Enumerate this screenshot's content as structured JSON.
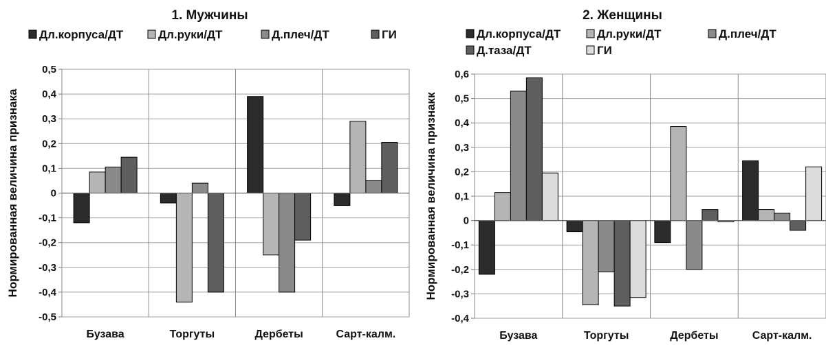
{
  "chart_data": [
    {
      "type": "bar",
      "title": "1. Мужчины",
      "ylabel": "Нормированная величина признака",
      "xlabel": "",
      "ylim": [
        -0.5,
        0.5
      ],
      "yticks": [
        "0,5",
        "0,4",
        "0,3",
        "0,2",
        "0,1",
        "0",
        "-0,1",
        "-0,2",
        "-0,3",
        "-0,4",
        "-0,5"
      ],
      "grid": "x-categories",
      "legend_position": "top",
      "categories": [
        "Бузава",
        "Торгуты",
        "Дербеты",
        "Сарт-калм."
      ],
      "series": [
        {
          "name": "Дл.корпуса/ДТ",
          "color": "#2b2b2b",
          "values": [
            -0.12,
            -0.04,
            0.39,
            -0.05
          ]
        },
        {
          "name": "Дл.руки/ДТ",
          "color": "#b5b5b5",
          "values": [
            0.085,
            -0.44,
            -0.25,
            0.29
          ]
        },
        {
          "name": "Д.плеч/ДТ",
          "color": "#8a8a8a",
          "values": [
            0.105,
            0.04,
            -0.4,
            0.05
          ]
        },
        {
          "name": "ГИ",
          "color": "#5e5e5e",
          "values": [
            0.145,
            -0.4,
            -0.19,
            0.205
          ]
        }
      ]
    },
    {
      "type": "bar",
      "title": "2. Женщины",
      "ylabel": "Нормированная величина признакк",
      "xlabel": "",
      "ylim": [
        -0.4,
        0.6
      ],
      "yticks": [
        "0,6",
        "0,5",
        "0,4",
        "0,3",
        "0,2",
        "0,1",
        "0",
        "-0,1",
        "-0,2",
        "-0,3",
        "-0,4"
      ],
      "grid": "x-categories",
      "legend_position": "top",
      "categories": [
        "Бузава",
        "Торгуты",
        "Дербеты",
        "Сарт-калм."
      ],
      "series": [
        {
          "name": "Дл.корпуса/ДТ",
          "color": "#2b2b2b",
          "values": [
            -0.22,
            -0.045,
            -0.09,
            0.245
          ]
        },
        {
          "name": "Дл.руки/ДТ",
          "color": "#b5b5b5",
          "values": [
            0.115,
            -0.345,
            0.385,
            0.045
          ]
        },
        {
          "name": "Д.плеч/ДТ",
          "color": "#8a8a8a",
          "values": [
            0.53,
            -0.21,
            -0.2,
            0.03
          ]
        },
        {
          "name": "Д.таза/ДТ",
          "color": "#5e5e5e",
          "values": [
            0.585,
            -0.35,
            0.045,
            -0.04
          ]
        },
        {
          "name": "ГИ",
          "color": "#dcdcdc",
          "values": [
            0.195,
            -0.315,
            -0.005,
            0.22
          ]
        }
      ]
    }
  ]
}
